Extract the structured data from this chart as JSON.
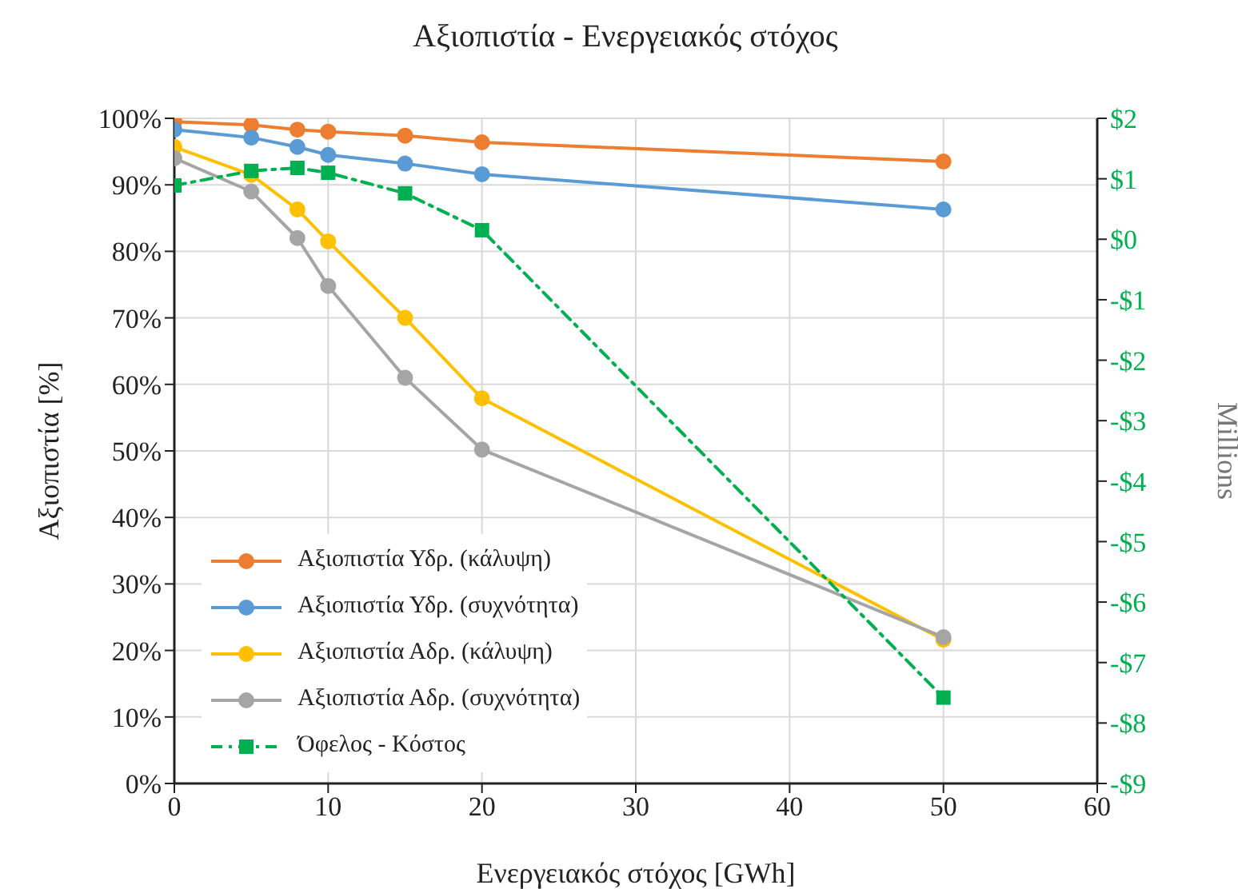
{
  "chart_data": {
    "type": "line",
    "title": "Αξιοπιστία - Ενεργειακός στόχος",
    "xlabel": "Ενεργειακός στόχος [GWh]",
    "ylabel": "Αξιοπιστία [%]",
    "y2label": "Millions",
    "x": [
      0,
      5,
      8,
      10,
      15,
      20,
      50
    ],
    "series": [
      {
        "name": "Αξιοπιστία Υδρ. (κάλυψη)",
        "color": "#ed7d31",
        "marker": "circle",
        "line_style": "solid",
        "values": [
          99.5,
          99,
          98.3,
          98,
          97.4,
          96.4,
          93.5
        ]
      },
      {
        "name": "Αξιοπιστία Υδρ. (συχνότητα)",
        "color": "#5b9bd5",
        "marker": "circle",
        "line_style": "solid",
        "values": [
          98.3,
          97.1,
          95.7,
          94.5,
          93.2,
          91.6,
          86.3
        ]
      },
      {
        "name": "Αξιοπιστία Αδρ. (κάλυψη)",
        "color": "#ffc000",
        "marker": "circle",
        "line_style": "solid",
        "values": [
          95.7,
          91.5,
          86.3,
          81.5,
          70,
          57.9,
          21.6
        ]
      },
      {
        "name": "Αξιοπιστία Αδρ. (συχνότητα)",
        "color": "#a5a5a5",
        "marker": "circle",
        "line_style": "solid",
        "values": [
          94,
          89,
          82,
          74.8,
          61,
          50.2,
          22
        ]
      },
      {
        "name": "Όφελος - Κόστος",
        "color": "#00b050",
        "marker": "square",
        "line_style": "dashed",
        "axis": "y2",
        "values": [
          0.89,
          1.13,
          1.18,
          1.1,
          0.76,
          0.15,
          -7.58
        ]
      }
    ],
    "xlim": [
      0,
      60
    ],
    "xticks": [
      0,
      10,
      20,
      30,
      40,
      50,
      60
    ],
    "ylim": [
      0,
      100
    ],
    "yticks": [
      {
        "value": 0,
        "label": "0%"
      },
      {
        "value": 10,
        "label": "10%"
      },
      {
        "value": 20,
        "label": "20%"
      },
      {
        "value": 30,
        "label": "30%"
      },
      {
        "value": 40,
        "label": "40%"
      },
      {
        "value": 50,
        "label": "50%"
      },
      {
        "value": 60,
        "label": "60%"
      },
      {
        "value": 70,
        "label": "70%"
      },
      {
        "value": 80,
        "label": "80%"
      },
      {
        "value": 90,
        "label": "90%"
      },
      {
        "value": 100,
        "label": "100%"
      }
    ],
    "y2lim": [
      -9,
      2
    ],
    "y2ticks": [
      {
        "value": 2,
        "label": "$2"
      },
      {
        "value": 1,
        "label": "$1"
      },
      {
        "value": 0,
        "label": "$0"
      },
      {
        "value": -1,
        "label": "-$1"
      },
      {
        "value": -2,
        "label": "-$2"
      },
      {
        "value": -3,
        "label": "-$3"
      },
      {
        "value": -4,
        "label": "-$4"
      },
      {
        "value": -5,
        "label": "-$5"
      },
      {
        "value": -6,
        "label": "-$6"
      },
      {
        "value": -7,
        "label": "-$7"
      },
      {
        "value": -8,
        "label": "-$8"
      },
      {
        "value": -9,
        "label": "-$9"
      }
    ],
    "grid": true,
    "legend": "bottom left"
  }
}
